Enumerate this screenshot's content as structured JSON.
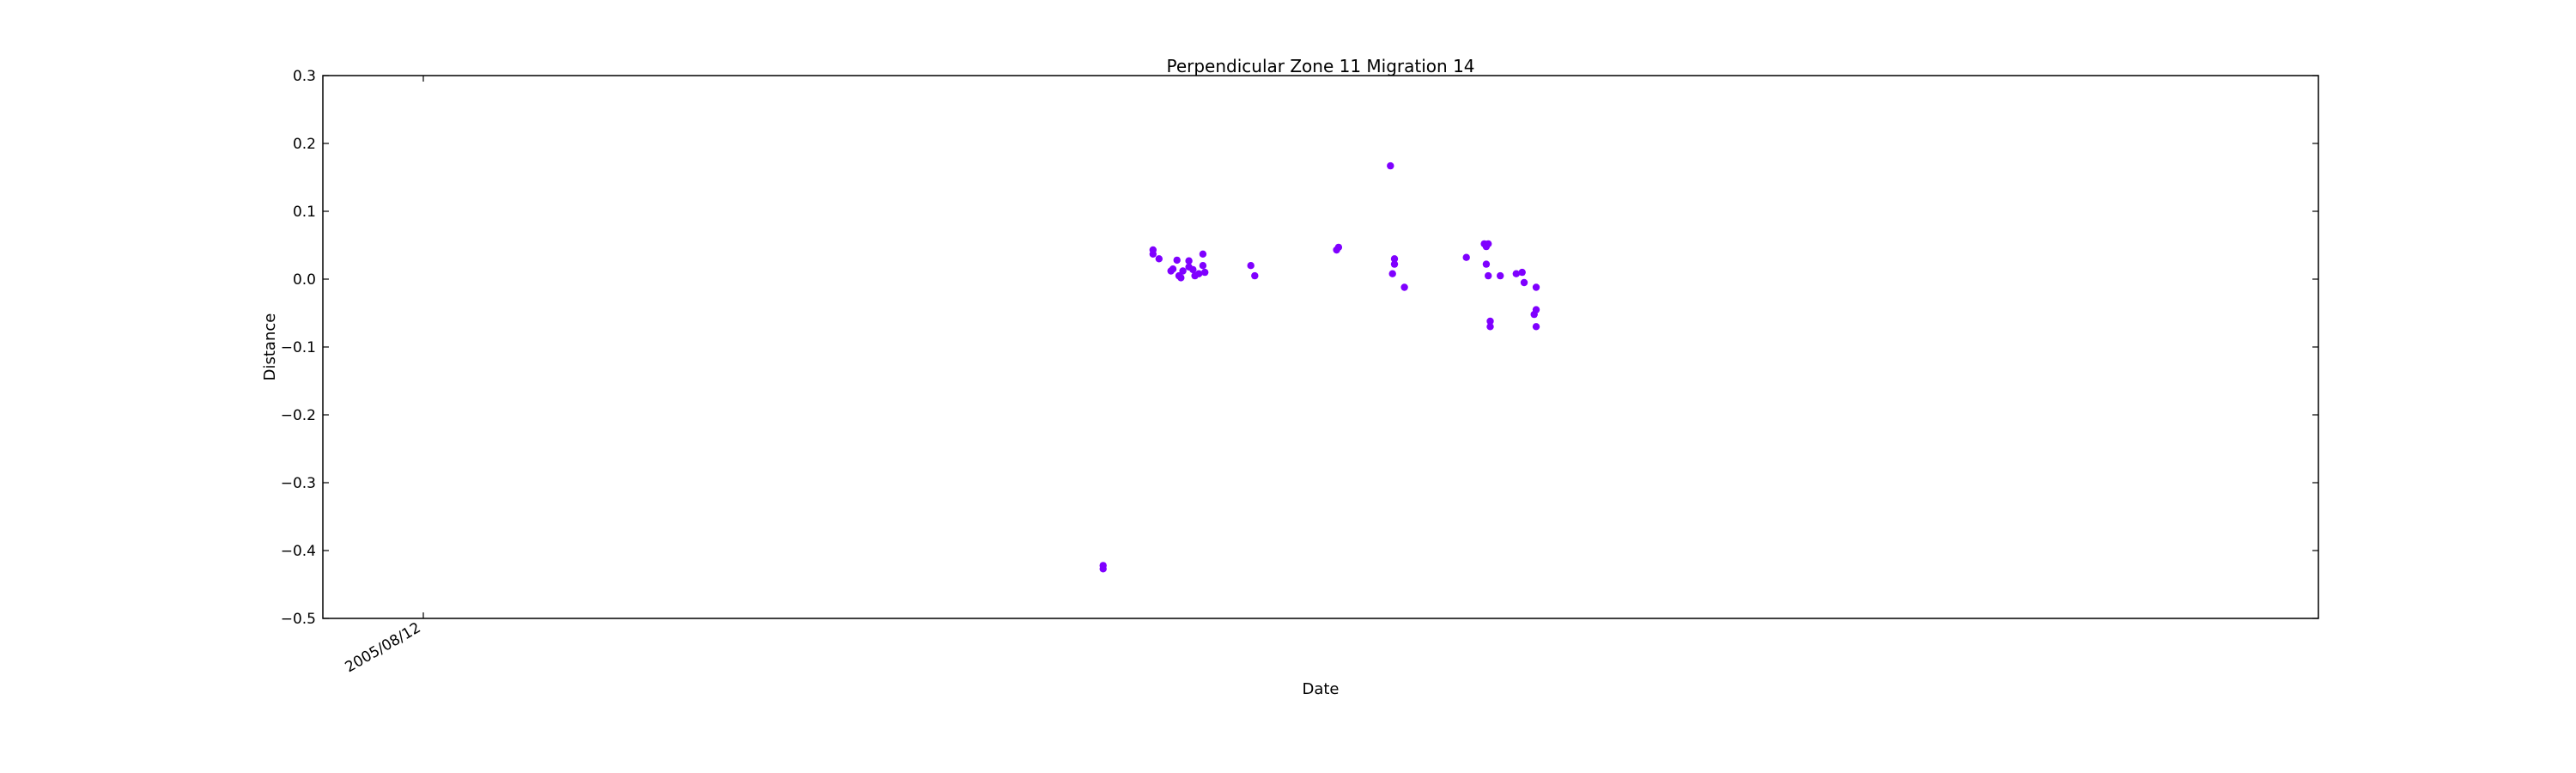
{
  "chart_data": {
    "type": "scatter",
    "title": "Perpendicular Zone 11 Migration 14",
    "xlabel": "Date",
    "ylabel": "Distance",
    "ylim": [
      -0.5,
      0.3
    ],
    "yticks": [
      "0.3",
      "0.2",
      "0.1",
      "0.0",
      "−0.1",
      "−0.2",
      "−0.3",
      "−0.4",
      "−0.5"
    ],
    "xtick_labels": [
      "2005/08/12"
    ],
    "grid": false,
    "marker_color": "#7f00ff",
    "series": [
      {
        "points": [
          [
            0.391,
            -0.422
          ],
          [
            0.391,
            -0.427
          ],
          [
            0.416,
            0.043
          ],
          [
            0.416,
            0.037
          ],
          [
            0.419,
            0.03
          ],
          [
            0.425,
            0.012
          ],
          [
            0.426,
            0.015
          ],
          [
            0.428,
            0.028
          ],
          [
            0.429,
            0.005
          ],
          [
            0.43,
            0.002
          ],
          [
            0.431,
            0.012
          ],
          [
            0.434,
            0.027
          ],
          [
            0.434,
            0.018
          ],
          [
            0.436,
            0.014
          ],
          [
            0.437,
            0.005
          ],
          [
            0.439,
            0.008
          ],
          [
            0.441,
            0.037
          ],
          [
            0.441,
            0.02
          ],
          [
            0.442,
            0.01
          ],
          [
            0.465,
            0.02
          ],
          [
            0.467,
            0.005
          ],
          [
            0.508,
            0.043
          ],
          [
            0.509,
            0.047
          ],
          [
            0.535,
            0.167
          ],
          [
            0.537,
            0.03
          ],
          [
            0.537,
            0.022
          ],
          [
            0.536,
            0.008
          ],
          [
            0.542,
            -0.012
          ],
          [
            0.573,
            0.032
          ],
          [
            0.582,
            0.052
          ],
          [
            0.583,
            0.048
          ],
          [
            0.584,
            0.052
          ],
          [
            0.583,
            0.022
          ],
          [
            0.584,
            0.005
          ],
          [
            0.585,
            -0.062
          ],
          [
            0.585,
            -0.07
          ],
          [
            0.59,
            0.005
          ],
          [
            0.598,
            0.008
          ],
          [
            0.601,
            0.01
          ],
          [
            0.602,
            -0.005
          ],
          [
            0.608,
            -0.012
          ],
          [
            0.608,
            -0.045
          ],
          [
            0.607,
            -0.052
          ],
          [
            0.608,
            -0.07
          ]
        ]
      }
    ]
  }
}
